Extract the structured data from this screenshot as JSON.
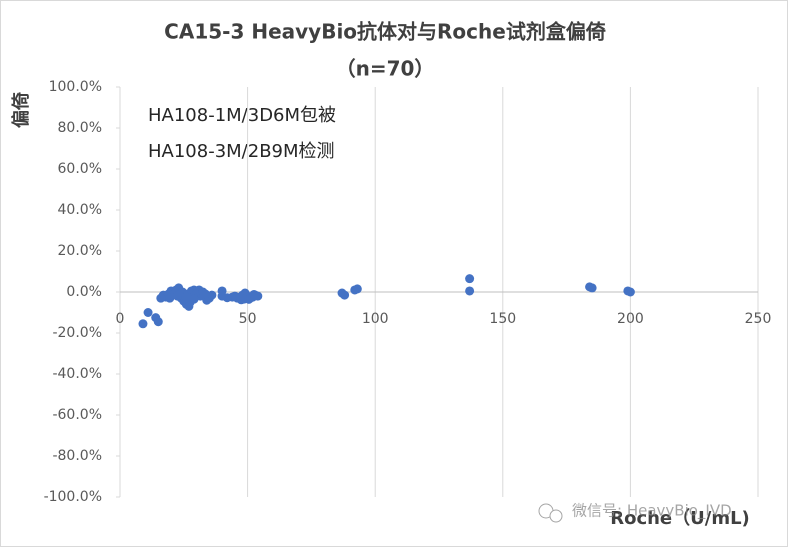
{
  "chart_data": {
    "type": "scatter",
    "title": "CA15-3 HeavyBio抗体对与Roche试剂盒偏倚",
    "subtitle": "（n=70）",
    "y_label": "偏倚",
    "x_label": "Roche（U/mL)",
    "annotations": [
      "HA108-1M/3D6M包被",
      "HA108-3M/2B9M检测"
    ],
    "watermark": "微信号: HeavyBio_IVD",
    "color": "#4472c4",
    "grid": true,
    "xlim": [
      0,
      250
    ],
    "xticks": [
      0,
      50,
      100,
      150,
      200,
      250
    ],
    "ylim": [
      -100,
      100
    ],
    "yticks": [
      {
        "value": 100,
        "label": "100.0%"
      },
      {
        "value": 80,
        "label": "80.0%"
      },
      {
        "value": 60,
        "label": "60.0%"
      },
      {
        "value": 40,
        "label": "40.0%"
      },
      {
        "value": 20,
        "label": "20.0%"
      },
      {
        "value": 0,
        "label": "0.0%"
      },
      {
        "value": -20,
        "label": "-20.0%"
      },
      {
        "value": -40,
        "label": "-40.0%"
      },
      {
        "value": -60,
        "label": "-60.0%"
      },
      {
        "value": -80,
        "label": "-80.0%"
      },
      {
        "value": -100,
        "label": "-100.0%"
      }
    ],
    "x": [
      9,
      11,
      14,
      15,
      17,
      18,
      19,
      19.5,
      20,
      21,
      21.5,
      22,
      23,
      23.5,
      24,
      24.5,
      25,
      25.5,
      26,
      26.5,
      27,
      27.5,
      28,
      28.5,
      29,
      29.5,
      30,
      30.5,
      31,
      31.5,
      32,
      32.5,
      33,
      34,
      35,
      36,
      40,
      40,
      44,
      45,
      46,
      47,
      48,
      48.5,
      49,
      49.5,
      50,
      51,
      52,
      53,
      54,
      87,
      88,
      92,
      93,
      137,
      137,
      184,
      185,
      199,
      200,
      16,
      22.5,
      26,
      29,
      33.5,
      42,
      47.5,
      50.5,
      52.5
    ],
    "values": [
      -15.5,
      -10,
      -12.5,
      -14.5,
      -1.5,
      -2.5,
      -1,
      -3,
      0.5,
      -1.5,
      -0.5,
      1,
      2,
      -1,
      -3,
      0,
      -4.5,
      -2,
      -6,
      -1,
      -7,
      -5,
      0.5,
      -2.5,
      1,
      -1.5,
      -0.5,
      0.5,
      1,
      -2,
      -1,
      0,
      -2,
      -4,
      -3,
      -1.5,
      0.5,
      -2,
      -2.5,
      -2,
      -3,
      -2.5,
      -1.5,
      -3.5,
      -0.5,
      -3,
      -2,
      -3,
      -2.5,
      -1.5,
      -2,
      -0.5,
      -1.5,
      1,
      1.5,
      6.5,
      0.5,
      2.5,
      2,
      0.5,
      0,
      -3,
      -2,
      -2.5,
      -3.5,
      -1,
      -2.8,
      -3.8,
      -3.6,
      -1.2
    ]
  }
}
